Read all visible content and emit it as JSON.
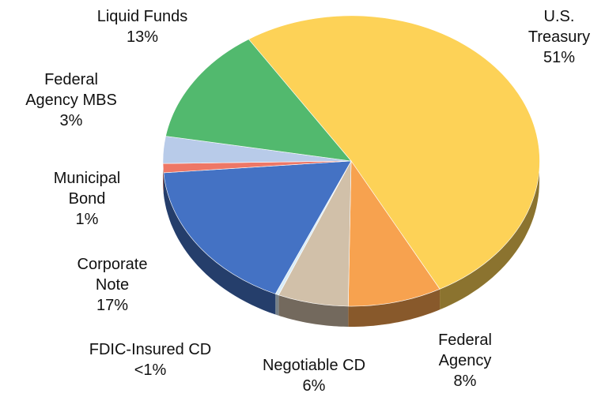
{
  "chart_data": {
    "type": "pie3d",
    "categories": [
      "U.S. Treasury",
      "Federal Agency",
      "Negotiable CD",
      "FDIC-Insured CD",
      "Corporate Note",
      "Municipal Bond",
      "Federal Agency MBS",
      "Liquid Funds"
    ],
    "values": [
      51,
      8,
      6,
      0.3,
      17,
      1,
      3,
      13
    ],
    "value_labels": [
      "51%",
      "8%",
      "6%",
      "<1%",
      "17%",
      "1%",
      "3%",
      "13%"
    ],
    "colors": [
      "#fdd257",
      "#f7a24f",
      "#d1c0a9",
      "#d9ecf7",
      "#4472c4",
      "#ee7766",
      "#b8cbe9",
      "#52b96e"
    ]
  }
}
